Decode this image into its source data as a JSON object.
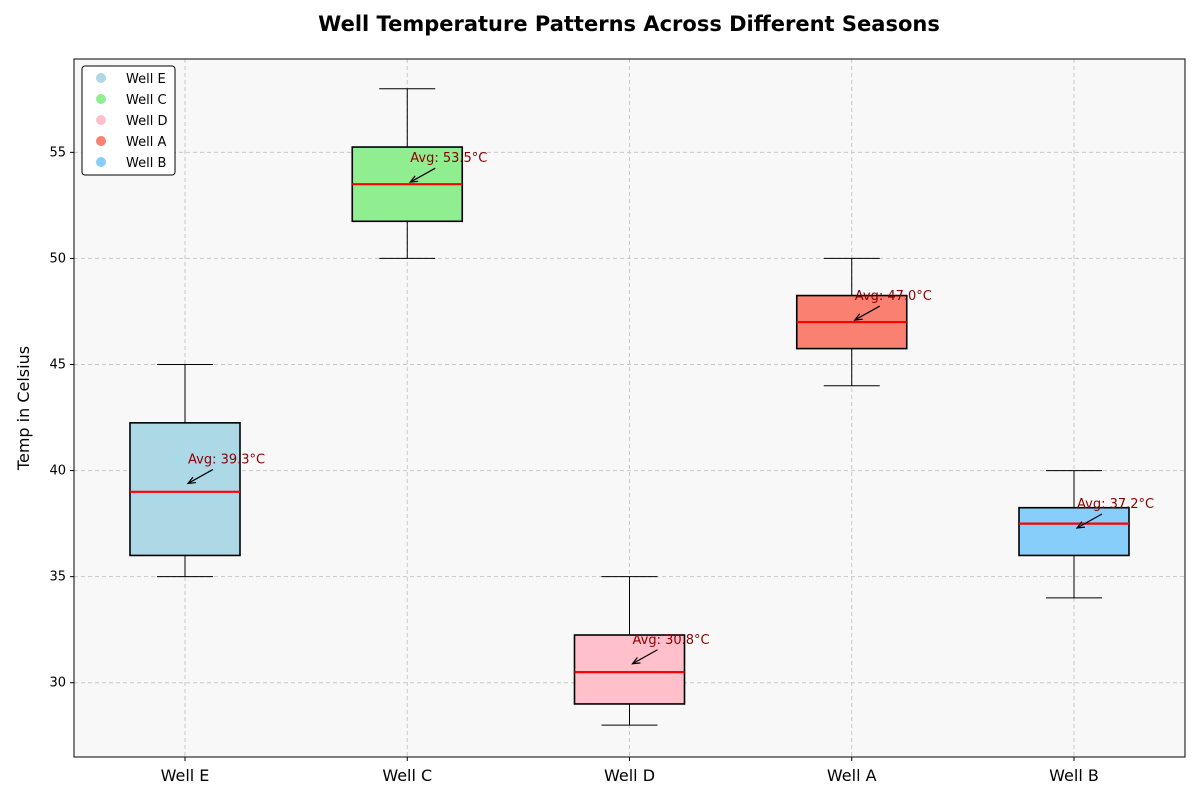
{
  "chart_data": {
    "type": "box",
    "title": "Well Temperature Patterns Across Different Seasons",
    "xlabel": "",
    "ylabel": "Temp in Celsius",
    "ylim": [
      26.5,
      59.4
    ],
    "yticks": [
      30,
      35,
      40,
      45,
      50,
      55
    ],
    "grid": true,
    "legend_position": "top-left",
    "median_color": "#ff0000",
    "annotation_color": "#8b0000",
    "background_color": "#f8f8f8",
    "categories": [
      "Well E",
      "Well C",
      "Well D",
      "Well A",
      "Well B"
    ],
    "boxes": [
      {
        "name": "Well E",
        "whisker_low": 35,
        "q1": 36.0,
        "median": 39.0,
        "q3": 42.25,
        "whisker_high": 45,
        "mean": 39.3,
        "mean_label": "Avg: 39.3°C",
        "color": "#add8e6"
      },
      {
        "name": "Well C",
        "whisker_low": 50,
        "q1": 51.75,
        "median": 53.5,
        "q3": 55.25,
        "whisker_high": 58,
        "mean": 53.5,
        "mean_label": "Avg: 53.5°C",
        "color": "#90ee90"
      },
      {
        "name": "Well D",
        "whisker_low": 28,
        "q1": 29.0,
        "median": 30.5,
        "q3": 32.25,
        "whisker_high": 35,
        "mean": 30.8,
        "mean_label": "Avg: 30.8°C",
        "color": "#ffc0cb"
      },
      {
        "name": "Well A",
        "whisker_low": 44,
        "q1": 45.75,
        "median": 47.0,
        "q3": 48.25,
        "whisker_high": 50,
        "mean": 47.0,
        "mean_label": "Avg: 47.0°C",
        "color": "#fa8072"
      },
      {
        "name": "Well B",
        "whisker_low": 34,
        "q1": 36.0,
        "median": 37.5,
        "q3": 38.25,
        "whisker_high": 40,
        "mean": 37.2,
        "mean_label": "Avg: 37.2°C",
        "color": "#87cefa"
      }
    ],
    "legend": [
      {
        "label": "Well E",
        "color": "#add8e6"
      },
      {
        "label": "Well C",
        "color": "#90ee90"
      },
      {
        "label": "Well D",
        "color": "#ffc0cb"
      },
      {
        "label": "Well A",
        "color": "#fa8072"
      },
      {
        "label": "Well B",
        "color": "#87cefa"
      }
    ]
  }
}
